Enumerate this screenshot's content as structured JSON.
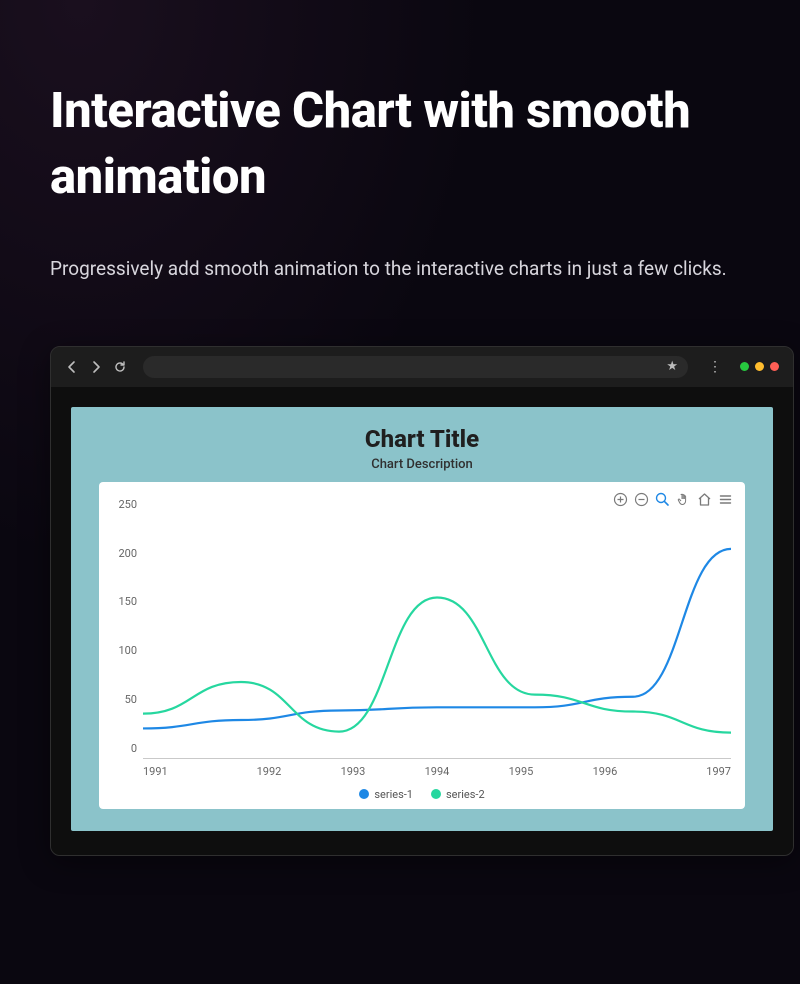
{
  "hero": {
    "title": "Interactive Chart with smooth animation",
    "subtitle": "Progressively add smooth animation to the interactive charts in just a few clicks."
  },
  "browser": {
    "traffic_colors": [
      "#27c93f",
      "#ffbd2e",
      "#ff5f56"
    ]
  },
  "chart": {
    "type": "line",
    "title": "Chart Title",
    "description": "Chart Description",
    "title_fontsize": 24,
    "desc_fontsize": 13,
    "outer_bg": "#8bc3ca",
    "card_bg": "#ffffff",
    "axis_color": "#c9c9c9",
    "tick_font_color": "#666666",
    "tick_fontsize": 11,
    "x": {
      "categories": [
        "1991",
        "1992",
        "1993",
        "1994",
        "1995",
        "1996",
        "1997"
      ],
      "lim": [
        1991,
        1997
      ]
    },
    "y": {
      "ticks": [
        0,
        50,
        100,
        150,
        200,
        250
      ],
      "lim": [
        0,
        250
      ]
    },
    "series": [
      {
        "name": "series-1",
        "color": "#1e88e5",
        "stroke_width": 2.2,
        "values": [
          28,
          36,
          45,
          48,
          48,
          58,
          198
        ]
      },
      {
        "name": "series-2",
        "color": "#26d79f",
        "stroke_width": 2.2,
        "values": [
          42,
          72,
          25,
          152,
          60,
          44,
          24
        ]
      }
    ],
    "legend": {
      "position": "bottom-center",
      "marker_shape": "circle",
      "fontsize": 11
    },
    "toolbar": {
      "items": [
        "zoom-in",
        "zoom-out",
        "zoom",
        "pan",
        "home",
        "menu"
      ],
      "active": "zoom",
      "icon_color": "#7a7a7a",
      "active_color": "#1e88e5"
    }
  }
}
